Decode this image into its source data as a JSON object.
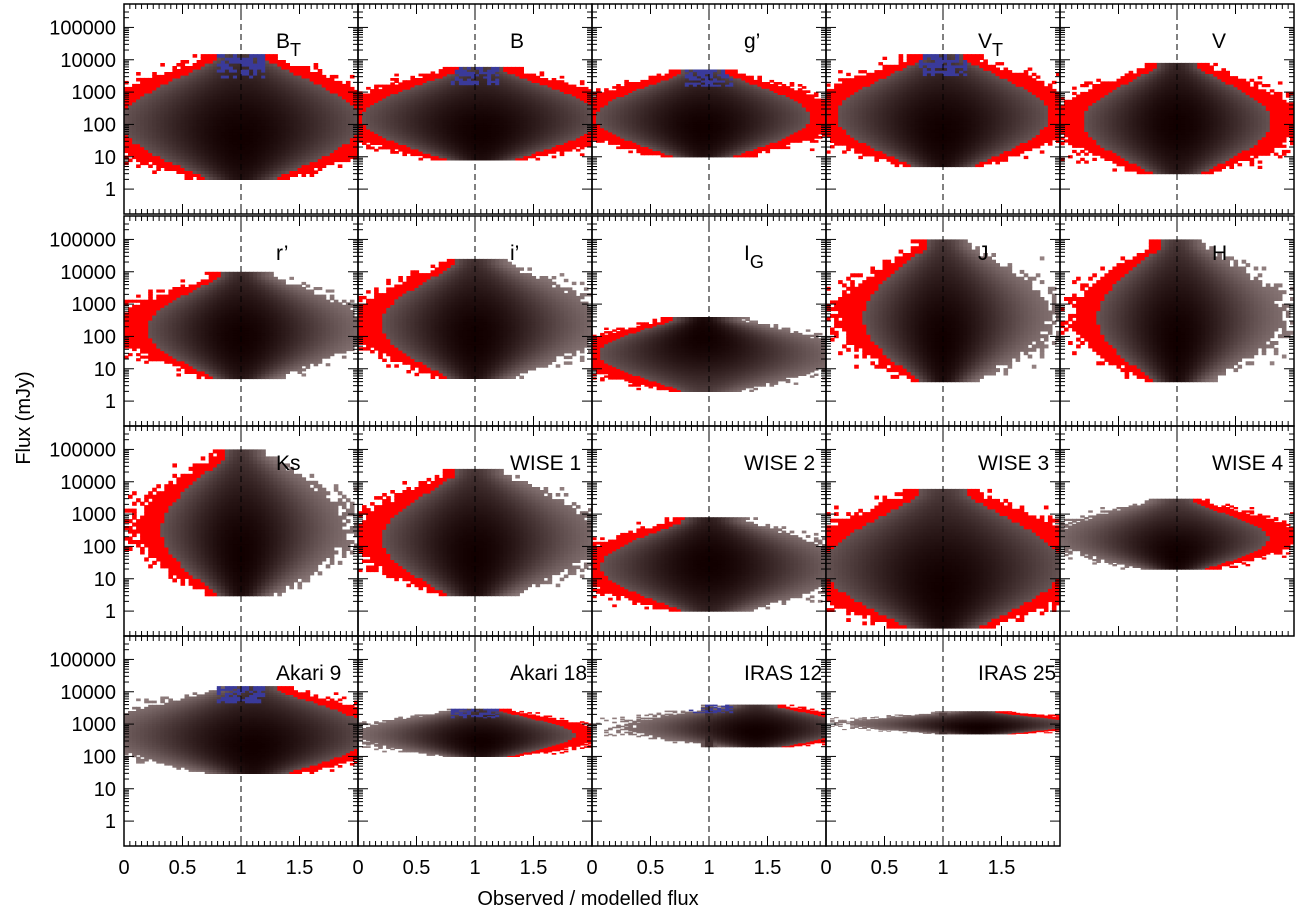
{
  "chart_data": {
    "type": "heatmap",
    "description_kind": "grid of 2D density histograms",
    "xlabel": "Observed / modelled flux",
    "ylabel": "Flux (mJy)",
    "x_ticks": [
      "0",
      "0.5",
      "1",
      "1.5"
    ],
    "x_tick_values": [
      0,
      0.5,
      1,
      1.5
    ],
    "xlim": [
      0,
      2
    ],
    "y_scale": "log",
    "y_ticks": [
      "1",
      "10",
      "100",
      "1000",
      "10000",
      "100000"
    ],
    "y_tick_values": [
      1,
      10,
      100,
      1000,
      10000,
      100000
    ],
    "ylim": [
      0.3,
      300000
    ],
    "reference_line_x": 1,
    "grid": false,
    "colors": {
      "density_low": "#7a6a6a",
      "density_high": "#000000",
      "outliers": "#ff0000",
      "bright_sources": "#3a3a9a"
    },
    "panels": [
      {
        "label": "B",
        "sub": "T",
        "flux_range": [
          2,
          15000
        ],
        "peak_x": 1.0,
        "peak_flux": 40,
        "spread": 0.45,
        "red_side": "both",
        "blue": true
      },
      {
        "label": "B",
        "sub": "",
        "flux_range": [
          8,
          6000
        ],
        "peak_x": 1.05,
        "peak_flux": 60,
        "spread": 0.45,
        "red_side": "both",
        "blue": true
      },
      {
        "label": "g’",
        "sub": "",
        "flux_range": [
          10,
          5000
        ],
        "peak_x": 0.95,
        "peak_flux": 80,
        "spread": 0.4,
        "red_side": "both",
        "blue": true
      },
      {
        "label": "V",
        "sub": "T",
        "flux_range": [
          5,
          15000
        ],
        "peak_x": 1.0,
        "peak_flux": 60,
        "spread": 0.4,
        "red_side": "both",
        "blue": true
      },
      {
        "label": "V",
        "sub": "",
        "flux_range": [
          3,
          8000
        ],
        "peak_x": 1.0,
        "peak_flux": 100,
        "spread": 0.35,
        "red_side": "both",
        "blue": false
      },
      {
        "label": "r’",
        "sub": "",
        "flux_range": [
          5,
          10000
        ],
        "peak_x": 1.0,
        "peak_flux": 100,
        "spread": 0.35,
        "red_side": "left",
        "blue": false
      },
      {
        "label": "i’",
        "sub": "",
        "flux_range": [
          5,
          25000
        ],
        "peak_x": 1.0,
        "peak_flux": 100,
        "spread": 0.35,
        "red_side": "left",
        "blue": false
      },
      {
        "label": "I",
        "sub": "G",
        "flux_range": [
          2,
          400
        ],
        "peak_x": 0.95,
        "peak_flux": 100,
        "spread": 0.4,
        "red_side": "left",
        "blue": false
      },
      {
        "label": "J",
        "sub": "",
        "flux_range": [
          4,
          100000
        ],
        "peak_x": 1.0,
        "peak_flux": 80,
        "spread": 0.3,
        "red_side": "left",
        "blue": false
      },
      {
        "label": "H",
        "sub": "",
        "flux_range": [
          4,
          100000
        ],
        "peak_x": 1.0,
        "peak_flux": 80,
        "spread": 0.3,
        "red_side": "left",
        "blue": false
      },
      {
        "label": "Ks",
        "sub": "",
        "flux_range": [
          3,
          100000
        ],
        "peak_x": 1.0,
        "peak_flux": 60,
        "spread": 0.3,
        "red_side": "left",
        "blue": false
      },
      {
        "label": "WISE 1",
        "sub": "",
        "flux_range": [
          3,
          25000
        ],
        "peak_x": 1.0,
        "peak_flux": 50,
        "spread": 0.35,
        "red_side": "left",
        "blue": false
      },
      {
        "label": "WISE 2",
        "sub": "",
        "flux_range": [
          1,
          800
        ],
        "peak_x": 1.0,
        "peak_flux": 30,
        "spread": 0.4,
        "red_side": "left",
        "blue": false
      },
      {
        "label": "WISE 3",
        "sub": "",
        "flux_range": [
          0.3,
          6000
        ],
        "peak_x": 1.0,
        "peak_flux": 5,
        "spread": 0.45,
        "red_side": "both",
        "blue": false
      },
      {
        "label": "WISE 4",
        "sub": "",
        "flux_range": [
          20,
          3000
        ],
        "peak_x": 1.0,
        "peak_flux": 60,
        "spread": 0.35,
        "red_side": "right",
        "blue": false
      },
      {
        "label": "Akari 9",
        "sub": "",
        "flux_range": [
          30,
          15000
        ],
        "peak_x": 1.1,
        "peak_flux": 200,
        "spread": 0.45,
        "red_side": "right",
        "blue": true
      },
      {
        "label": "Akari 18",
        "sub": "",
        "flux_range": [
          100,
          3000
        ],
        "peak_x": 1.05,
        "peak_flux": 300,
        "spread": 0.35,
        "red_side": "right",
        "blue": true
      },
      {
        "label": "IRAS 12",
        "sub": "",
        "flux_range": [
          200,
          4000
        ],
        "peak_x": 1.4,
        "peak_flux": 600,
        "spread": 0.35,
        "red_side": "right",
        "blue": true
      },
      {
        "label": "IRAS 25",
        "sub": "",
        "flux_range": [
          500,
          2500
        ],
        "peak_x": 1.3,
        "peak_flux": 800,
        "spread": 0.35,
        "red_side": "right",
        "blue": false
      }
    ]
  }
}
